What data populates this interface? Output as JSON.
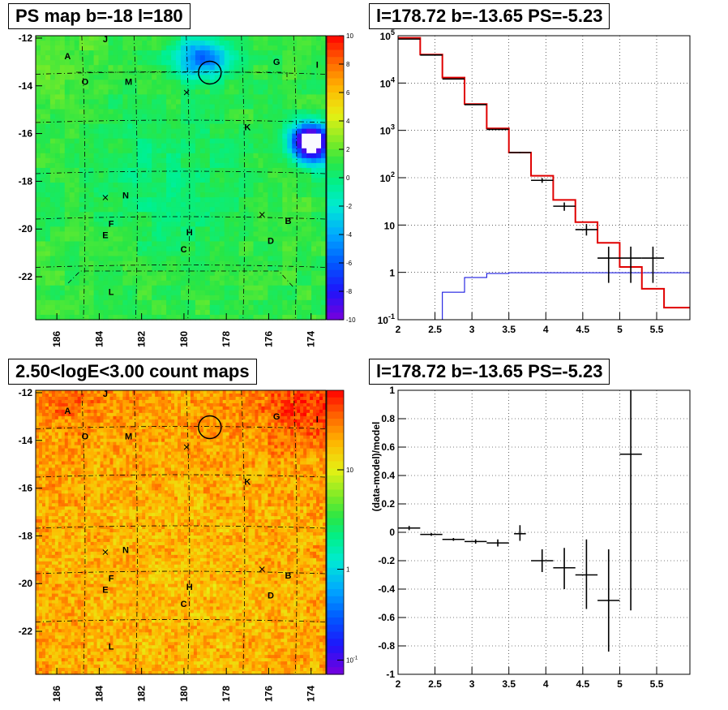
{
  "chart_data": [
    {
      "type": "heatmap",
      "title": "PS map b=-18 l=180",
      "x_tick_labels": [
        "186",
        "184",
        "182",
        "180",
        "178",
        "176",
        "174"
      ],
      "y_tick_labels": [
        "-12",
        "-14",
        "-16",
        "-18",
        "-20",
        "-22"
      ],
      "z_tick_labels": [
        "10",
        "8",
        "6",
        "4",
        "2",
        "0",
        "-2",
        "-4",
        "-6",
        "-8",
        "-10"
      ],
      "source_labels": [
        "A",
        "J",
        "O",
        "M",
        "G",
        "I",
        "K",
        "N",
        "F",
        "E",
        "H",
        "C",
        "B",
        "D",
        "L"
      ]
    },
    {
      "type": "line",
      "title": "l=178.72 b=-13.65 PS=-5.23",
      "ylog": true,
      "xlim": [
        2.0,
        5.95
      ],
      "ylim": [
        0.1,
        100000
      ],
      "x_tick_labels": [
        "2",
        "2.5",
        "3",
        "3.5",
        "4",
        "4.5",
        "5",
        "5.5"
      ],
      "y_tick_labels": [
        "10^5",
        "10^4",
        "10^3",
        "10^2",
        "10",
        "1",
        "10^-1"
      ],
      "model_red": [
        {
          "x0": 2.0,
          "x1": 2.3,
          "y": 90000
        },
        {
          "x0": 2.3,
          "x1": 2.6,
          "y": 40000
        },
        {
          "x0": 2.6,
          "x1": 2.9,
          "y": 13000
        },
        {
          "x0": 2.9,
          "x1": 3.2,
          "y": 3600
        },
        {
          "x0": 3.2,
          "x1": 3.5,
          "y": 1100
        },
        {
          "x0": 3.5,
          "x1": 3.8,
          "y": 340
        },
        {
          "x0": 3.8,
          "x1": 4.1,
          "y": 110
        },
        {
          "x0": 4.1,
          "x1": 4.4,
          "y": 34
        },
        {
          "x0": 4.4,
          "x1": 4.7,
          "y": 11.5
        },
        {
          "x0": 4.7,
          "x1": 5.0,
          "y": 4.2
        },
        {
          "x0": 5.0,
          "x1": 5.3,
          "y": 1.3
        },
        {
          "x0": 5.3,
          "x1": 5.6,
          "y": 0.45
        },
        {
          "x0": 5.6,
          "x1": 5.95,
          "y": 0.18
        }
      ],
      "background_blue": [
        {
          "x0": 2.6,
          "x1": 2.9,
          "y": 0.38
        },
        {
          "x0": 2.9,
          "x1": 3.2,
          "y": 0.78
        },
        {
          "x0": 3.2,
          "x1": 3.5,
          "y": 0.95
        },
        {
          "x0": 3.5,
          "x1": 5.95,
          "y": 0.98
        }
      ],
      "data_points": [
        {
          "x": 2.15,
          "y": 85000,
          "xerr": 0.15,
          "ylo": 84000,
          "yhi": 86000
        },
        {
          "x": 2.45,
          "y": 39000,
          "xerr": 0.15,
          "ylo": 38500,
          "yhi": 39500
        },
        {
          "x": 2.75,
          "y": 12200,
          "xerr": 0.15,
          "ylo": 12000,
          "yhi": 12400
        },
        {
          "x": 3.05,
          "y": 3500,
          "xerr": 0.15,
          "ylo": 3450,
          "yhi": 3550
        },
        {
          "x": 3.35,
          "y": 1050,
          "xerr": 0.15,
          "ylo": 1030,
          "yhi": 1070
        },
        {
          "x": 3.65,
          "y": 340,
          "xerr": 0.15,
          "ylo": 330,
          "yhi": 350
        },
        {
          "x": 3.95,
          "y": 88,
          "xerr": 0.15,
          "ylo": 78,
          "yhi": 98
        },
        {
          "x": 4.25,
          "y": 25,
          "xerr": 0.15,
          "ylo": 20,
          "yhi": 30
        },
        {
          "x": 4.55,
          "y": 8,
          "xerr": 0.15,
          "ylo": 6,
          "yhi": 10.5
        },
        {
          "x": 4.85,
          "y": 2,
          "xerr": 0.15,
          "ylo": 0.6,
          "yhi": 3.5
        },
        {
          "x": 5.15,
          "y": 2,
          "xerr": 0.15,
          "ylo": 0.6,
          "yhi": 3.5
        },
        {
          "x": 5.45,
          "y": 2,
          "xerr": 0.15,
          "ylo": 0.6,
          "yhi": 3.5
        }
      ]
    },
    {
      "type": "heatmap",
      "title": "2.50<logE<3.00 count maps",
      "x_tick_labels": [
        "186",
        "184",
        "182",
        "180",
        "178",
        "176",
        "174"
      ],
      "y_tick_labels": [
        "-12",
        "-14",
        "-16",
        "-18",
        "-20",
        "-22"
      ],
      "z_tick_labels": [
        "10",
        "1",
        "10^-1"
      ],
      "source_labels": [
        "A",
        "J",
        "O",
        "M",
        "G",
        "I",
        "K",
        "N",
        "F",
        "E",
        "H",
        "C",
        "B",
        "D",
        "L"
      ]
    },
    {
      "type": "scatter",
      "title": "l=178.72 b=-13.65 PS=-5.23",
      "ylabel": "(data-model)/model",
      "xlim": [
        2.0,
        5.95
      ],
      "ylim": [
        -1,
        1
      ],
      "x_tick_labels": [
        "2",
        "2.5",
        "3",
        "3.5",
        "4",
        "4.5",
        "5",
        "5.5"
      ],
      "y_tick_labels": [
        "1",
        "0.8",
        "0.6",
        "0.4",
        "0.2",
        "0",
        "-0.2",
        "-0.4",
        "-0.6",
        "-0.8",
        "-1"
      ],
      "points": [
        {
          "x": 2.15,
          "y": 0.03,
          "xerr": 0.15,
          "ylo": 0.015,
          "yhi": 0.045
        },
        {
          "x": 2.45,
          "y": -0.015,
          "xerr": 0.15,
          "ylo": -0.025,
          "yhi": -0.005
        },
        {
          "x": 2.75,
          "y": -0.05,
          "xerr": 0.15,
          "ylo": -0.06,
          "yhi": -0.04
        },
        {
          "x": 3.05,
          "y": -0.065,
          "xerr": 0.15,
          "ylo": -0.08,
          "yhi": -0.05
        },
        {
          "x": 3.35,
          "y": -0.075,
          "xerr": 0.15,
          "ylo": -0.1,
          "yhi": -0.05
        },
        {
          "x": 3.65,
          "y": -0.01,
          "xerr": 0.08,
          "ylo": -0.06,
          "yhi": 0.05
        },
        {
          "x": 3.95,
          "y": -0.2,
          "xerr": 0.15,
          "ylo": -0.28,
          "yhi": -0.12
        },
        {
          "x": 4.25,
          "y": -0.25,
          "xerr": 0.15,
          "ylo": -0.4,
          "yhi": -0.11
        },
        {
          "x": 4.55,
          "y": -0.3,
          "xerr": 0.15,
          "ylo": -0.54,
          "yhi": -0.05
        },
        {
          "x": 4.85,
          "y": -0.48,
          "xerr": 0.15,
          "ylo": -0.84,
          "yhi": -0.12
        },
        {
          "x": 5.15,
          "y": 0.55,
          "xerr": 0.15,
          "ylo": -0.55,
          "yhi": 1.0
        }
      ]
    }
  ]
}
